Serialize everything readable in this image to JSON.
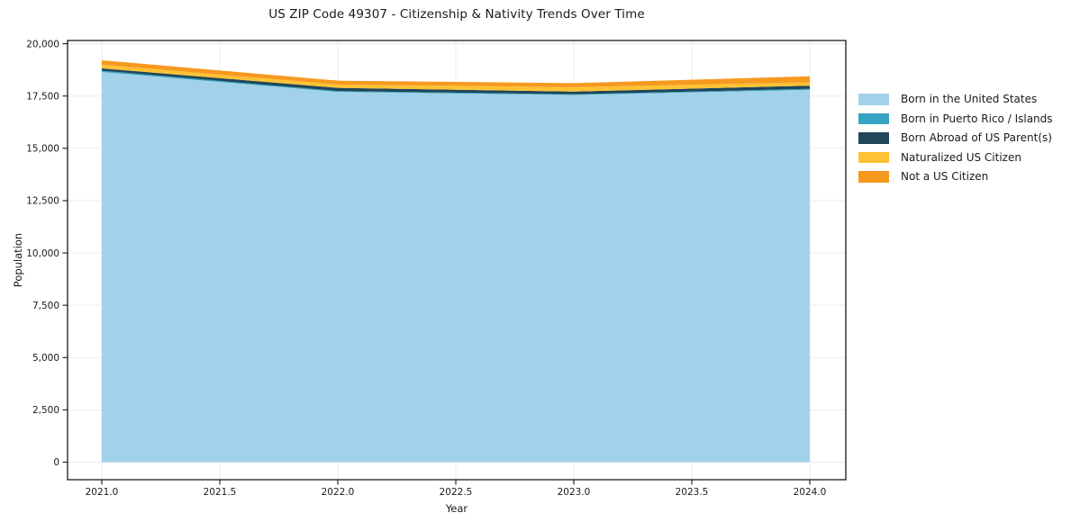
{
  "chart_data": {
    "type": "area",
    "stacked": true,
    "title": "US ZIP Code 49307 - Citizenship & Nativity Trends Over Time",
    "xlabel": "Year",
    "ylabel": "Population",
    "x": [
      2021,
      2022,
      2023,
      2024
    ],
    "x_ticks": [
      2021.0,
      2021.5,
      2022.0,
      2022.5,
      2023.0,
      2023.5,
      2024.0
    ],
    "x_tick_labels": [
      "2021.0",
      "2021.5",
      "2022.0",
      "2022.5",
      "2023.0",
      "2023.5",
      "2024.0"
    ],
    "y_ticks": [
      0,
      2500,
      5000,
      7500,
      10000,
      12500,
      15000,
      17500,
      20000
    ],
    "y_tick_labels": [
      "0",
      "2,500",
      "5,000",
      "7,500",
      "10,000",
      "12,500",
      "15,000",
      "17,500",
      "20,000"
    ],
    "ylim": [
      0,
      20000
    ],
    "grid": true,
    "legend_position": "right",
    "series": [
      {
        "name": "Born in the United States",
        "color": "#a2d2e9",
        "values": [
          18650,
          17700,
          17550,
          17800
        ]
      },
      {
        "name": "Born in Puerto Rico / Islands",
        "color": "#35a3c1",
        "values": [
          60,
          40,
          35,
          45
        ]
      },
      {
        "name": "Born Abroad of US Parent(s)",
        "color": "#1f4659",
        "values": [
          110,
          150,
          130,
          150
        ]
      },
      {
        "name": "Naturalized US Citizen",
        "color": "#fdc233",
        "values": [
          180,
          160,
          210,
          160
        ]
      },
      {
        "name": "Not a US Citizen",
        "color": "#f7991f",
        "values": [
          210,
          185,
          190,
          290
        ]
      }
    ],
    "stack_totals": [
      19210,
      18235,
      18115,
      18445
    ],
    "frame_color": "#1a1a1a",
    "grid_color": "#ebebeb"
  }
}
